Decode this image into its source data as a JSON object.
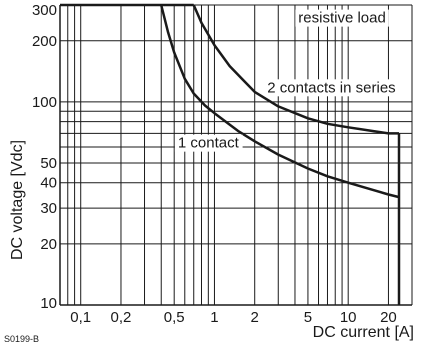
{
  "chart_data": {
    "type": "line",
    "title": "",
    "xlabel": "DC current [A]",
    "ylabel": "DC voltage [Vdc]",
    "xscale": "log",
    "yscale": "log",
    "xlim": [
      0.07,
      30
    ],
    "ylim": [
      10,
      300
    ],
    "grid": true,
    "x_ticks": [
      0.1,
      0.2,
      0.5,
      1,
      2,
      5,
      10,
      20
    ],
    "x_tick_labels": [
      "0,1",
      "0,2",
      "0,5",
      "1",
      "2",
      "5",
      "10",
      "20"
    ],
    "y_ticks": [
      10,
      20,
      30,
      40,
      50,
      100,
      200,
      300
    ],
    "y_tick_labels": [
      "10",
      "20",
      "30",
      "40",
      "50",
      "100",
      "200",
      "300"
    ],
    "annotations": [
      {
        "text": "resistive load",
        "x": 9.0,
        "y": 260
      },
      {
        "text": "2 contacts in series",
        "x": 7.5,
        "y": 118
      },
      {
        "text": "1 contact",
        "x": 0.9,
        "y": 63
      }
    ],
    "series": [
      {
        "x": [
          0.4,
          0.45,
          0.5,
          0.6,
          0.7,
          0.85,
          1,
          1.5,
          2,
          3,
          5,
          7,
          10,
          15,
          20,
          24
        ],
        "y": [
          300,
          220,
          175,
          130,
          110,
          96,
          88,
          72,
          64,
          55,
          47,
          43,
          40,
          37,
          35,
          34
        ]
      },
      {
        "x": [
          0.7,
          0.8,
          1,
          1.3,
          1.7,
          2,
          3,
          5,
          7,
          10,
          15,
          20,
          24
        ],
        "y": [
          300,
          245,
          190,
          150,
          125,
          112,
          95,
          83,
          78,
          75,
          72,
          70,
          70
        ]
      },
      {
        "x": [
          24,
          24
        ],
        "y": [
          70,
          10
        ]
      }
    ],
    "envelope": {
      "top_x": [
        0.07,
        0.7
      ],
      "top_y": 300
    }
  },
  "figure_code": "S0199-B"
}
